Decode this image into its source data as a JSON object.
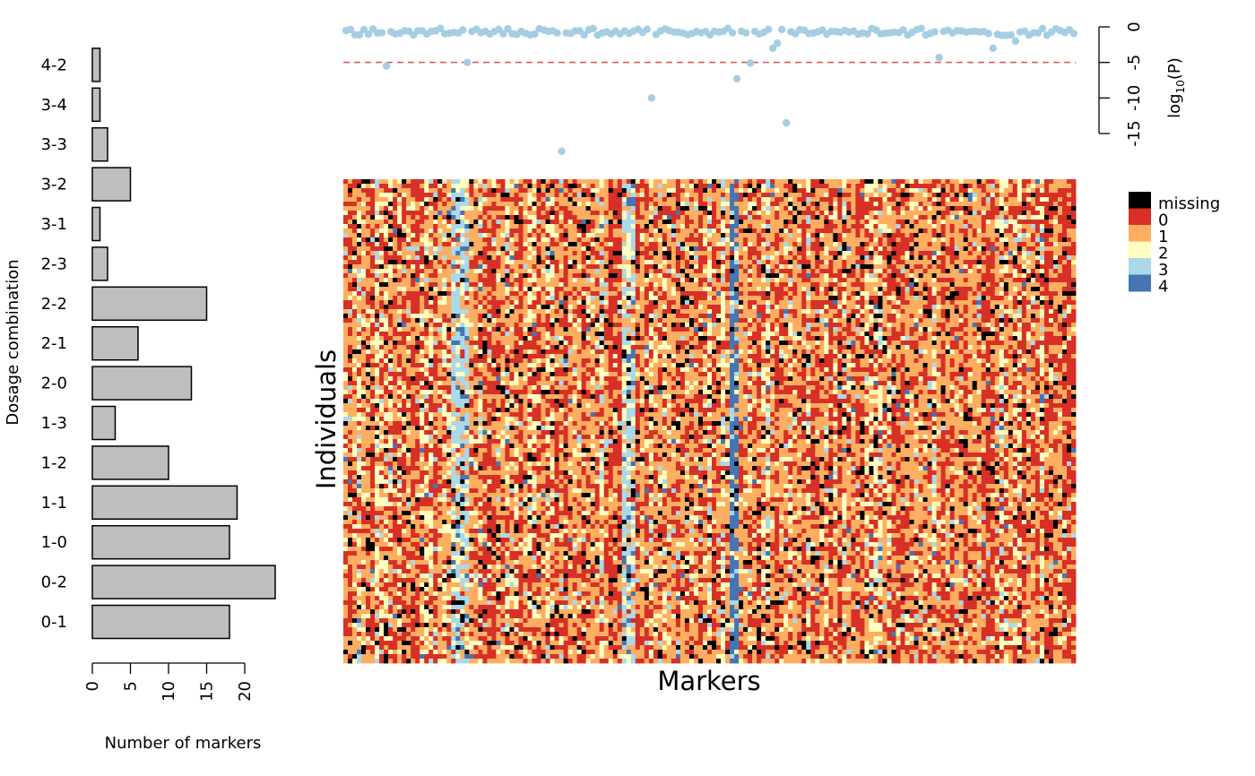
{
  "chart_data": [
    {
      "type": "bar",
      "orientation": "horizontal",
      "ylabel": "Dosage combination",
      "xlabel": "Number of markers",
      "categories": [
        "0-1",
        "0-2",
        "1-0",
        "1-1",
        "1-2",
        "1-3",
        "2-0",
        "2-1",
        "2-2",
        "2-3",
        "3-1",
        "3-2",
        "3-3",
        "3-4",
        "4-2"
      ],
      "values": [
        18,
        24,
        18,
        19,
        10,
        3,
        13,
        6,
        15,
        2,
        1,
        5,
        2,
        1,
        1
      ],
      "xlim": [
        0,
        24
      ],
      "xticks": [
        "0",
        "5",
        "10",
        "15",
        "20"
      ],
      "bar_color": "#bebebe",
      "bar_border": "#000000"
    },
    {
      "type": "scatter",
      "ylabel_main": "log",
      "ylabel_sub": "10",
      "ylabel_tail": "(P)",
      "ylim": [
        -17,
        0
      ],
      "yticks": [
        "0",
        "-5",
        "-10",
        "-15"
      ],
      "ytick_values": [
        0,
        -5,
        -10,
        -15
      ],
      "threshold": -5,
      "threshold_color": "#d9534f",
      "point_color": "#a6cee3",
      "outliers": [
        {
          "x": 9,
          "y": -5.5
        },
        {
          "x": 27,
          "y": -5
        },
        {
          "x": 48,
          "y": -17.5
        },
        {
          "x": 68,
          "y": -10
        },
        {
          "x": 87,
          "y": -7.3
        },
        {
          "x": 90,
          "y": -5.1
        },
        {
          "x": 95,
          "y": -3
        },
        {
          "x": 96,
          "y": -2.3
        },
        {
          "x": 98,
          "y": -13.5
        },
        {
          "x": 132,
          "y": -4.3
        },
        {
          "x": 144,
          "y": -3
        },
        {
          "x": 149,
          "y": -2
        }
      ]
    },
    {
      "type": "heatmap",
      "xlabel": "Markers",
      "ylabel": "Individuals",
      "legend": [
        {
          "label": "missing",
          "color": "#000000"
        },
        {
          "label": "0",
          "color": "#d73027"
        },
        {
          "label": "1",
          "color": "#fdae61"
        },
        {
          "label": "2",
          "color": "#ffffbf"
        },
        {
          "label": "3",
          "color": "#abd9e9"
        },
        {
          "label": "4",
          "color": "#4575b4"
        }
      ]
    }
  ]
}
